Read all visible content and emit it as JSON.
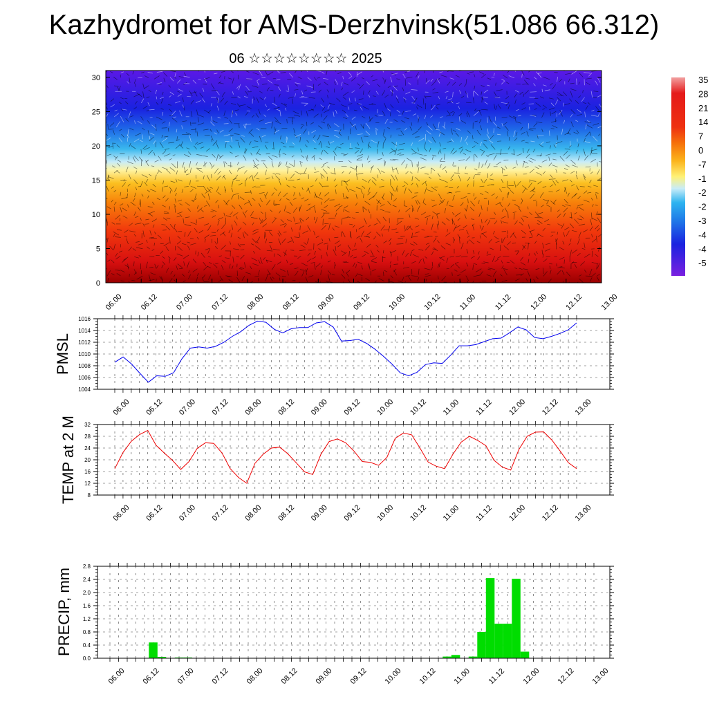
{
  "title": "Kazhydromet for AMS-Derzhvinsk(51.086 66.312)",
  "subtitle": "06 ☆☆☆☆☆☆☆☆ 2025",
  "colors": {
    "pmsl_line": "#0000ee",
    "temp_line": "#ee0000",
    "precip_bar": "#00dd00"
  },
  "chart_data": [
    {
      "type": "heatmap",
      "name": "cross-section",
      "yticks": [
        "0",
        "5",
        "10",
        "15",
        "20",
        "25",
        "30"
      ],
      "ylim": [
        0,
        31
      ],
      "xticks": [
        "06.00",
        "06.12",
        "07.00",
        "07.12",
        "08.00",
        "08.12",
        "09.00",
        "09.12",
        "10.00",
        "10.12",
        "11.00",
        "11.12",
        "12.00",
        "12.12",
        "13.00"
      ],
      "colorbar_labels": [
        "35",
        "28",
        "21",
        "14",
        "7",
        "0",
        "-7",
        "-1",
        "-2",
        "-2",
        "-3",
        "-4",
        "-4",
        "-5"
      ]
    },
    {
      "type": "line",
      "ylabel": "PMSL",
      "ylim": [
        1004,
        1016
      ],
      "yticks": [
        "1004",
        "1006",
        "1008",
        "1010",
        "1012",
        "1014",
        "1016"
      ],
      "xticks": [
        "06.00",
        "06.12",
        "07.00",
        "07.12",
        "08.00",
        "08.12",
        "09.00",
        "09.12",
        "10.00",
        "10.12",
        "11.00",
        "11.12",
        "12.00",
        "12.12",
        "13.00"
      ],
      "values": [
        1008.6,
        1009.5,
        1008.3,
        1006.7,
        1005.2,
        1006.3,
        1006.2,
        1006.8,
        1009.2,
        1011.0,
        1011.2,
        1011.0,
        1011.3,
        1012.0,
        1013.0,
        1013.8,
        1014.9,
        1015.6,
        1015.4,
        1014.2,
        1013.6,
        1014.3,
        1014.5,
        1014.5,
        1015.3,
        1015.5,
        1014.6,
        1012.2,
        1012.3,
        1012.5,
        1011.8,
        1010.8,
        1009.6,
        1008.3,
        1006.8,
        1006.3,
        1006.9,
        1008.2,
        1008.5,
        1008.4,
        1009.8,
        1011.4,
        1011.4,
        1011.6,
        1012.1,
        1012.6,
        1012.7,
        1013.6,
        1014.6,
        1014.1,
        1012.8,
        1012.6,
        1013.0,
        1013.5,
        1014.1,
        1015.3
      ]
    },
    {
      "type": "line",
      "ylabel": "TEMP at 2 M",
      "ylim": [
        8,
        32
      ],
      "yticks": [
        "8",
        "12",
        "16",
        "20",
        "24",
        "28",
        "32"
      ],
      "xticks": [
        "06.00",
        "06.12",
        "07.00",
        "07.12",
        "08.00",
        "08.12",
        "09.00",
        "09.12",
        "10.00",
        "10.12",
        "11.00",
        "11.12",
        "12.00",
        "12.12",
        "13.00"
      ],
      "values": [
        17.0,
        22.5,
        26.3,
        28.6,
        30.0,
        25.0,
        22.3,
        19.8,
        16.7,
        19.4,
        23.9,
        25.8,
        25.6,
        22.3,
        17.0,
        14.0,
        12.0,
        18.8,
        21.9,
        24.0,
        24.3,
        22.0,
        19.0,
        15.9,
        15.0,
        21.9,
        26.2,
        27.1,
        25.8,
        23.0,
        19.4,
        19.1,
        18.1,
        20.8,
        27.3,
        29.1,
        28.5,
        24.0,
        19.2,
        17.8,
        17.0,
        21.9,
        26.0,
        28.0,
        26.6,
        24.8,
        19.8,
        17.5,
        16.5,
        23.5,
        28.0,
        29.4,
        29.5,
        26.7,
        23.0,
        19.0,
        17.0
      ]
    },
    {
      "type": "bar",
      "ylabel": "PRECIP, mm",
      "ylim": [
        0,
        2.8
      ],
      "yticks": [
        "0.0",
        "0.4",
        "0.8",
        "1.2",
        "1.6",
        "2.0",
        "2.4",
        "2.8"
      ],
      "xticks": [
        "06.00",
        "06.12",
        "07.00",
        "07.12",
        "08.00",
        "08.12",
        "09.00",
        "09.12",
        "10.00",
        "10.12",
        "11.00",
        "11.12",
        "12.00",
        "12.12",
        "13.00"
      ],
      "values": [
        0,
        0,
        0,
        0,
        0,
        0.48,
        0.04,
        0,
        0.02,
        0.02,
        0,
        0,
        0,
        0,
        0,
        0,
        0,
        0,
        0,
        0,
        0,
        0,
        0,
        0,
        0,
        0,
        0,
        0,
        0,
        0,
        0,
        0,
        0,
        0,
        0,
        0,
        0,
        0,
        0.01,
        0.05,
        0.1,
        0,
        0.05,
        0.8,
        2.44,
        1.05,
        1.05,
        2.42,
        0.2,
        0.0,
        0,
        0,
        0,
        0,
        0.01,
        0,
        0
      ]
    }
  ]
}
